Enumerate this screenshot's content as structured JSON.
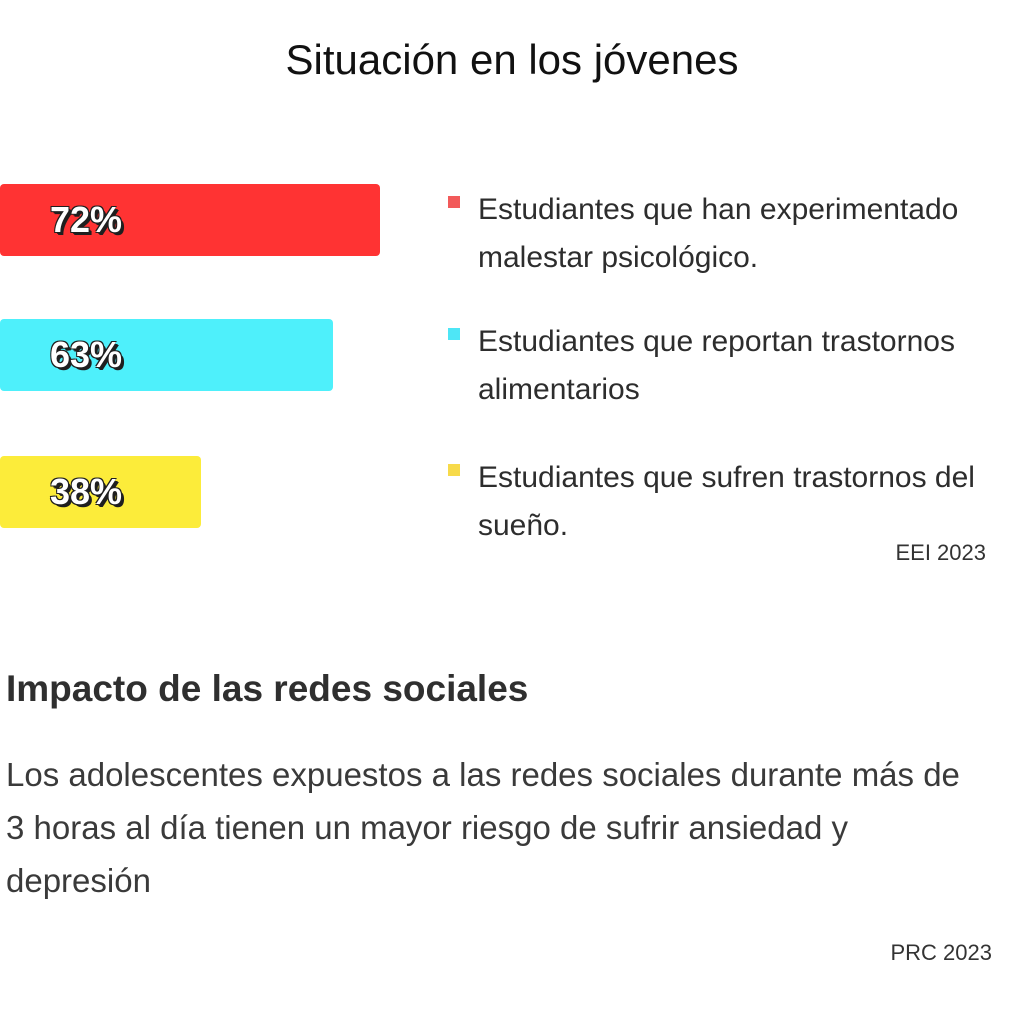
{
  "chart_data": {
    "type": "bar",
    "title": "Situación en los jóvenes",
    "orientation": "horizontal",
    "categories": [
      "Estudiantes que han experimentado malestar psicológico.",
      "Estudiantes que reportan trastornos alimentarios",
      "Estudiantes que sufren trastornos del sueño."
    ],
    "values": [
      72,
      63,
      38
    ],
    "value_labels": [
      "72%",
      "63%",
      "38%"
    ],
    "colors": [
      "#ff3333",
      "#4ef0fb",
      "#fcec3a"
    ],
    "legend_colors": [
      "#f25a5a",
      "#4ee6f6",
      "#f7da4a"
    ],
    "source": "EEI 2023"
  },
  "impact": {
    "heading": "Impacto de las redes sociales",
    "text": "Los adolescentes expuestos a las redes sociales durante más de 3 horas al día tienen un mayor riesgo de sufrir ansiedad y depresión",
    "source": "PRC 2023"
  }
}
